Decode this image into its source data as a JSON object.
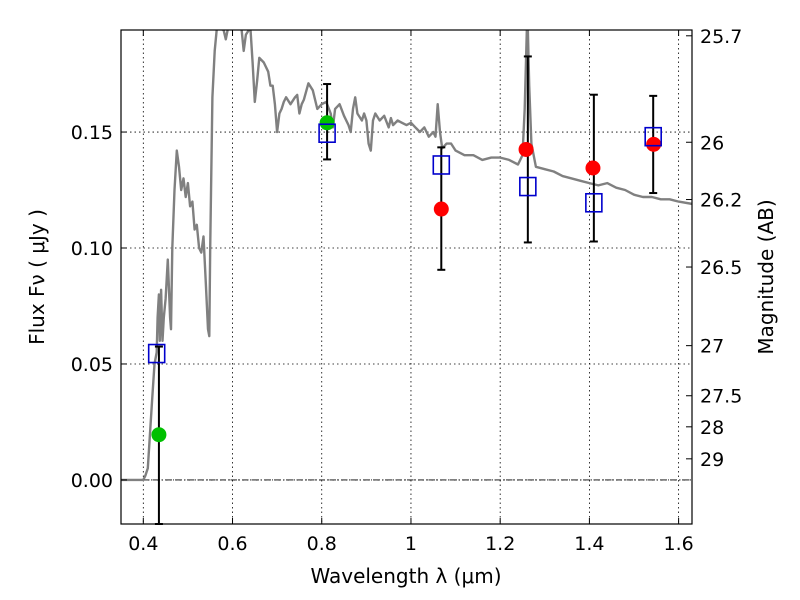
{
  "chart_data": {
    "type": "scatter",
    "title": "",
    "xlabel": "Wavelength  λ (μm)",
    "ylabel": "Flux  Fν  ( μJy )",
    "ylabel_right": "Magnitude (AB)",
    "xlim": [
      0.35,
      1.63
    ],
    "ylim": [
      -0.019,
      0.194
    ],
    "grid": true,
    "x_ticks": [
      {
        "value": 0.4,
        "label": "0.4"
      },
      {
        "value": 0.6,
        "label": "0.6"
      },
      {
        "value": 0.8,
        "label": "0.8"
      },
      {
        "value": 1.0,
        "label": "1"
      },
      {
        "value": 1.2,
        "label": "1.2"
      },
      {
        "value": 1.4,
        "label": "1.4"
      },
      {
        "value": 1.6,
        "label": "1.6"
      }
    ],
    "y_ticks": [
      {
        "value": 0.0,
        "label": "0.00"
      },
      {
        "value": 0.05,
        "label": "0.05"
      },
      {
        "value": 0.1,
        "label": "0.10"
      },
      {
        "value": 0.15,
        "label": "0.15"
      }
    ],
    "right_ticks": [
      {
        "label": "25.7",
        "flux": 0.1915
      },
      {
        "label": "26",
        "flux": 0.1456
      },
      {
        "label": "26.2",
        "flux": 0.1209
      },
      {
        "label": "26.5",
        "flux": 0.0918
      },
      {
        "label": "27",
        "flux": 0.0579
      },
      {
        "label": "27.5",
        "flux": 0.0363
      },
      {
        "label": "28",
        "flux": 0.0229
      },
      {
        "label": "29",
        "flux": 0.0091
      }
    ],
    "zero_line": 0.0,
    "series": [
      {
        "kind": "line",
        "color": "#808080",
        "points": [
          [
            0.35,
            0.0
          ],
          [
            0.4,
            0.0
          ],
          [
            0.405,
            0.002
          ],
          [
            0.41,
            0.005
          ],
          [
            0.415,
            0.02
          ],
          [
            0.42,
            0.035
          ],
          [
            0.425,
            0.05
          ],
          [
            0.43,
            0.055
          ],
          [
            0.432,
            0.07
          ],
          [
            0.435,
            0.08
          ],
          [
            0.437,
            0.06
          ],
          [
            0.44,
            0.082
          ],
          [
            0.443,
            0.06
          ],
          [
            0.446,
            0.07
          ],
          [
            0.45,
            0.078
          ],
          [
            0.455,
            0.095
          ],
          [
            0.46,
            0.07
          ],
          [
            0.462,
            0.065
          ],
          [
            0.465,
            0.1
          ],
          [
            0.47,
            0.125
          ],
          [
            0.475,
            0.142
          ],
          [
            0.48,
            0.135
          ],
          [
            0.485,
            0.125
          ],
          [
            0.49,
            0.13
          ],
          [
            0.495,
            0.122
          ],
          [
            0.5,
            0.128
          ],
          [
            0.505,
            0.118
          ],
          [
            0.51,
            0.12
          ],
          [
            0.515,
            0.108
          ],
          [
            0.52,
            0.11
          ],
          [
            0.525,
            0.1
          ],
          [
            0.53,
            0.098
          ],
          [
            0.535,
            0.105
          ],
          [
            0.54,
            0.085
          ],
          [
            0.545,
            0.065
          ],
          [
            0.548,
            0.062
          ],
          [
            0.55,
            0.1
          ],
          [
            0.555,
            0.165
          ],
          [
            0.56,
            0.185
          ],
          [
            0.565,
            0.195
          ],
          [
            0.58,
            0.194
          ],
          [
            0.585,
            0.19
          ],
          [
            0.59,
            0.195
          ],
          [
            0.6,
            0.195
          ],
          [
            0.62,
            0.195
          ],
          [
            0.625,
            0.185
          ],
          [
            0.63,
            0.192
          ],
          [
            0.64,
            0.195
          ],
          [
            0.645,
            0.18
          ],
          [
            0.65,
            0.163
          ],
          [
            0.655,
            0.172
          ],
          [
            0.66,
            0.182
          ],
          [
            0.67,
            0.18
          ],
          [
            0.68,
            0.176
          ],
          [
            0.685,
            0.17
          ],
          [
            0.69,
            0.17
          ],
          [
            0.695,
            0.162
          ],
          [
            0.7,
            0.15
          ],
          [
            0.705,
            0.158
          ],
          [
            0.71,
            0.16
          ],
          [
            0.715,
            0.163
          ],
          [
            0.72,
            0.165
          ],
          [
            0.73,
            0.162
          ],
          [
            0.74,
            0.165
          ],
          [
            0.745,
            0.166
          ],
          [
            0.75,
            0.158
          ],
          [
            0.755,
            0.162
          ],
          [
            0.76,
            0.164
          ],
          [
            0.77,
            0.171
          ],
          [
            0.78,
            0.168
          ],
          [
            0.79,
            0.16
          ],
          [
            0.8,
            0.162
          ],
          [
            0.81,
            0.163
          ],
          [
            0.82,
            0.158
          ],
          [
            0.825,
            0.152
          ],
          [
            0.83,
            0.16
          ],
          [
            0.84,
            0.162
          ],
          [
            0.85,
            0.157
          ],
          [
            0.86,
            0.153
          ],
          [
            0.865,
            0.15
          ],
          [
            0.87,
            0.16
          ],
          [
            0.875,
            0.165
          ],
          [
            0.88,
            0.158
          ],
          [
            0.89,
            0.155
          ],
          [
            0.895,
            0.158
          ],
          [
            0.9,
            0.155
          ],
          [
            0.905,
            0.145
          ],
          [
            0.91,
            0.142
          ],
          [
            0.915,
            0.155
          ],
          [
            0.92,
            0.158
          ],
          [
            0.93,
            0.155
          ],
          [
            0.94,
            0.157
          ],
          [
            0.95,
            0.152
          ],
          [
            0.955,
            0.156
          ],
          [
            0.96,
            0.153
          ],
          [
            0.97,
            0.155
          ],
          [
            0.98,
            0.154
          ],
          [
            0.99,
            0.153
          ],
          [
            1.0,
            0.154
          ],
          [
            1.01,
            0.152
          ],
          [
            1.02,
            0.15
          ],
          [
            1.03,
            0.152
          ],
          [
            1.04,
            0.148
          ],
          [
            1.05,
            0.15
          ],
          [
            1.055,
            0.148
          ],
          [
            1.06,
            0.162
          ],
          [
            1.065,
            0.15
          ],
          [
            1.07,
            0.143
          ],
          [
            1.08,
            0.145
          ],
          [
            1.09,
            0.145
          ],
          [
            1.1,
            0.142
          ],
          [
            1.12,
            0.14
          ],
          [
            1.14,
            0.14
          ],
          [
            1.16,
            0.138
          ],
          [
            1.18,
            0.139
          ],
          [
            1.2,
            0.139
          ],
          [
            1.22,
            0.138
          ],
          [
            1.24,
            0.136
          ],
          [
            1.25,
            0.14
          ],
          [
            1.255,
            0.16
          ],
          [
            1.26,
            0.195
          ],
          [
            1.262,
            0.195
          ],
          [
            1.265,
            0.17
          ],
          [
            1.27,
            0.145
          ],
          [
            1.28,
            0.135
          ],
          [
            1.3,
            0.134
          ],
          [
            1.32,
            0.133
          ],
          [
            1.34,
            0.131
          ],
          [
            1.36,
            0.13
          ],
          [
            1.38,
            0.129
          ],
          [
            1.4,
            0.128
          ],
          [
            1.42,
            0.127
          ],
          [
            1.44,
            0.128
          ],
          [
            1.46,
            0.126
          ],
          [
            1.48,
            0.125
          ],
          [
            1.5,
            0.123
          ],
          [
            1.52,
            0.122
          ],
          [
            1.54,
            0.122
          ],
          [
            1.56,
            0.121
          ],
          [
            1.58,
            0.121
          ],
          [
            1.6,
            0.12
          ],
          [
            1.63,
            0.119
          ]
        ]
      },
      {
        "kind": "markers",
        "marker": "circle",
        "color": "#00c000",
        "points": [
          [
            0.435,
            0.0195
          ],
          [
            0.812,
            0.154
          ]
        ]
      },
      {
        "kind": "markers",
        "marker": "circle",
        "color": "#ff0000",
        "points": [
          [
            1.068,
            0.1168
          ],
          [
            1.258,
            0.1425
          ],
          [
            1.408,
            0.1345
          ],
          [
            1.544,
            0.1447
          ]
        ]
      },
      {
        "kind": "markers",
        "marker": "square",
        "color": "#0000cc",
        "points": [
          [
            0.43,
            0.0545
          ],
          [
            0.812,
            0.1495
          ],
          [
            1.068,
            0.1358
          ],
          [
            1.262,
            0.1265
          ],
          [
            1.41,
            0.1195
          ],
          [
            1.543,
            0.148
          ]
        ]
      }
    ],
    "errorbars": [
      {
        "x": 0.435,
        "low": -0.019,
        "high": 0.0575
      },
      {
        "x": 0.812,
        "low": 0.1382,
        "high": 0.1707
      },
      {
        "x": 1.068,
        "low": 0.0906,
        "high": 0.1434
      },
      {
        "x": 1.262,
        "low": 0.1024,
        "high": 0.1826
      },
      {
        "x": 1.41,
        "low": 0.1028,
        "high": 0.1661
      },
      {
        "x": 1.543,
        "low": 0.1237,
        "high": 0.1656
      }
    ]
  }
}
